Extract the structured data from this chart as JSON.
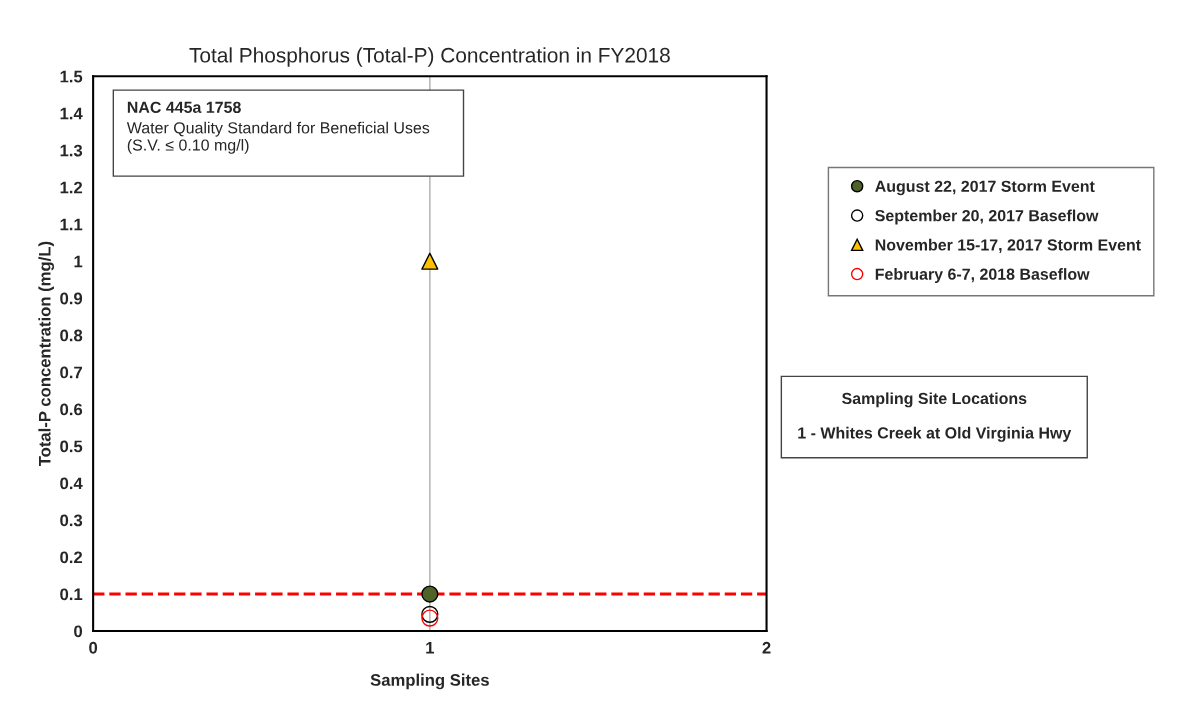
{
  "chart_data": {
    "type": "scatter",
    "title": "Total Phosphorus (Total-P) Concentration in FY2018",
    "xlabel": "Sampling Sites",
    "ylabel": "Total-P concentration (mg/L)",
    "x": [
      1
    ],
    "series": [
      {
        "name": "August 22, 2017 Storm Event",
        "marker": "circle",
        "colors": [
          "#4f6228"
        ],
        "values": [
          0.1
        ]
      },
      {
        "name": "September 20, 2017 Baseflow",
        "color": "#000000",
        "marker": "circle",
        "values": [
          0.045
        ]
      },
      {
        "name": "November 15-17, 2017 Storm Event",
        "marker": "triangle",
        "colors": [
          "#ffc000"
        ],
        "values": [
          1.0
        ]
      },
      {
        "name": "February 6-7, 2018 Baseflow",
        "color": "#ff0000",
        "marker": "circle",
        "values": [
          0.035
        ]
      }
    ],
    "xlim": [
      0,
      2
    ],
    "xticks": [
      0,
      1,
      2
    ],
    "ylim": [
      0,
      1.5
    ],
    "yticks": [
      0,
      0.1,
      0.2,
      0.3,
      0.4,
      0.5,
      0.6,
      0.7,
      0.8,
      0.9,
      1,
      1.1,
      1.2,
      1.3,
      1.4,
      1.5
    ],
    "legend": "right",
    "ref_lines": [
      {
        "axis": "x",
        "value": 1,
        "color": "#bbbbbb",
        "line_style": "solid"
      },
      {
        "axis": "y",
        "value": 0.1,
        "color": "#ff0000",
        "line_style": "dashed"
      }
    ],
    "annotations": [
      "NAC 445a 1758",
      "Water Quality Standard for Beneficial Uses\n(S.V. ≤ 0.10 mg/l)",
      "Sampling Site Locations",
      "1 - Whites Creek at Old Virginia Hwy"
    ]
  }
}
